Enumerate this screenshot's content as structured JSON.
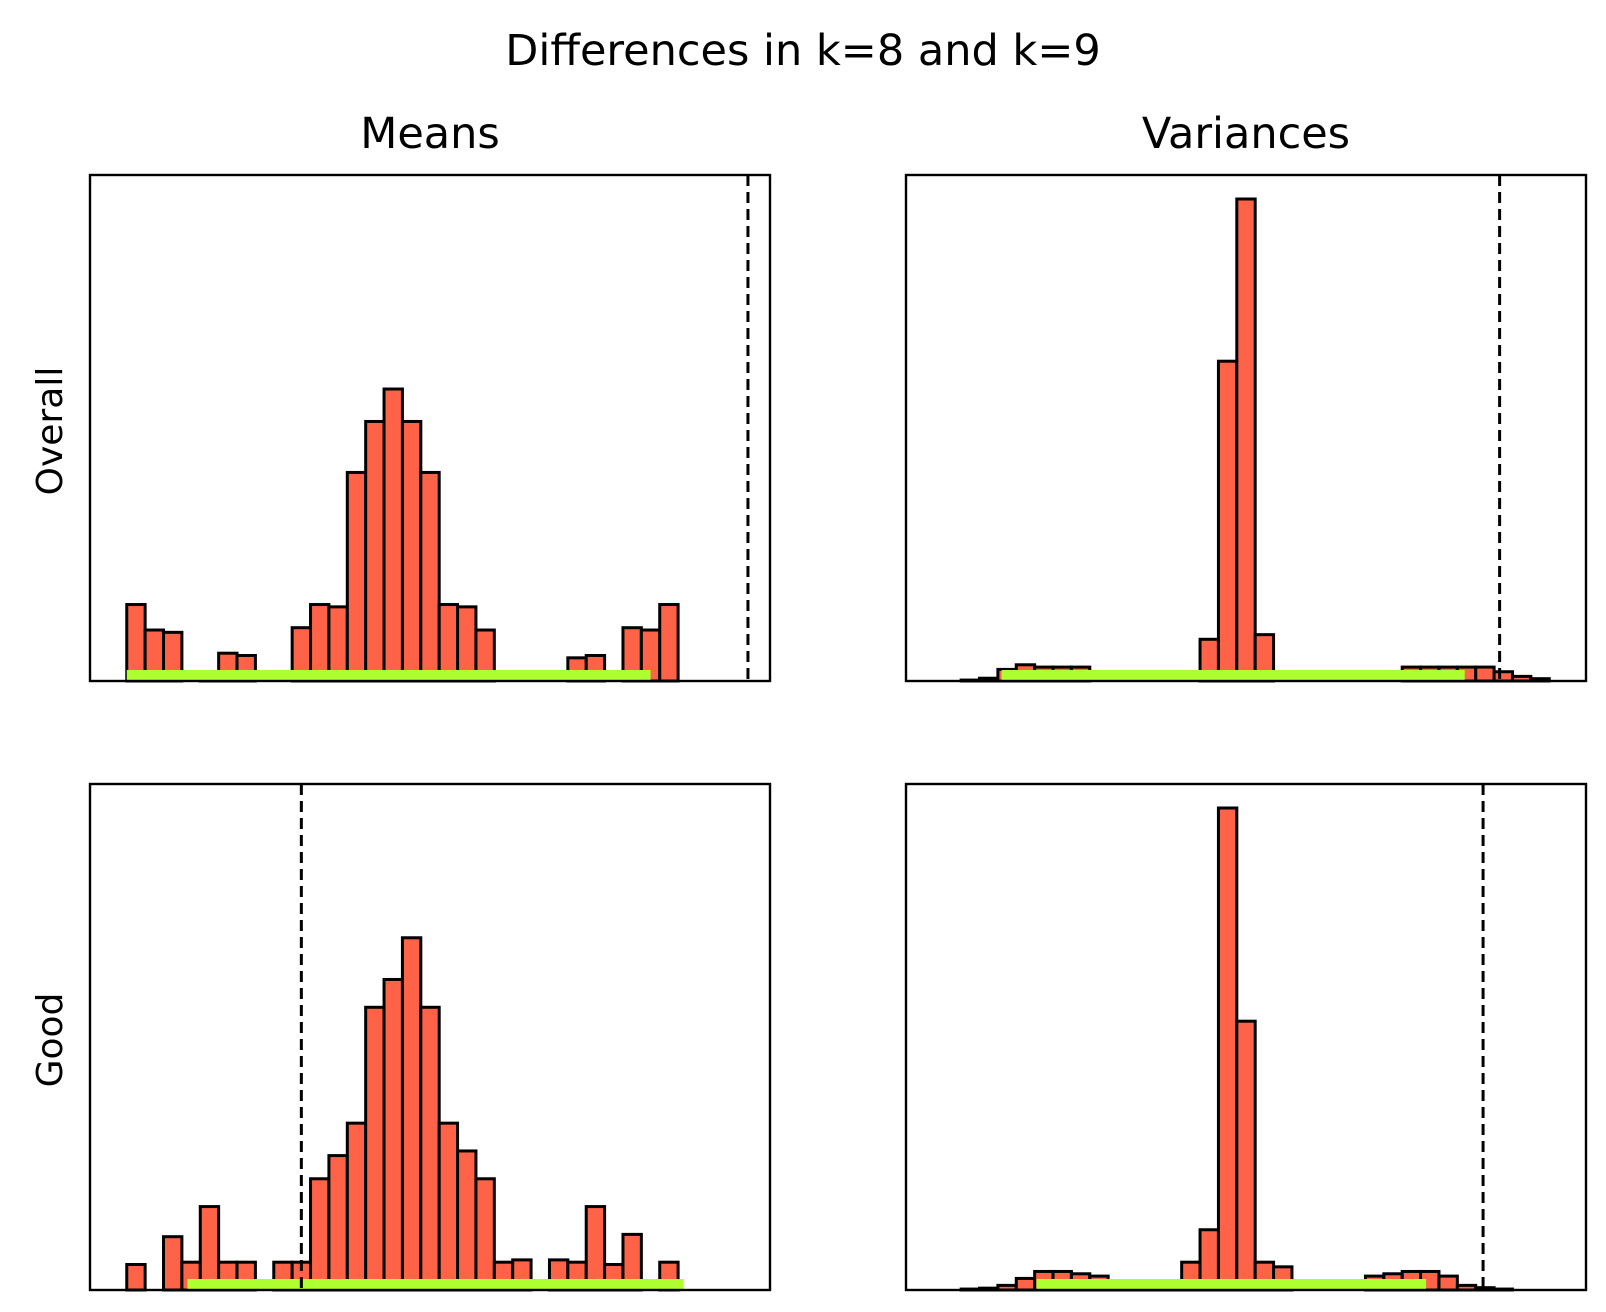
{
  "figure": {
    "suptitle": "Differences in k=8 and k=9",
    "col_titles": [
      "Means",
      "Variances"
    ],
    "row_labels": [
      "Overall",
      "Good"
    ]
  },
  "colors": {
    "bar_fill": "#ff6347",
    "bar_edge": "#000000",
    "interval": "#adff2f",
    "reference_line": "#000000"
  },
  "chart_data": [
    {
      "type": "bar",
      "panel": "Overall / Means",
      "xlim": [
        -2,
        35
      ],
      "ymax": 104,
      "x_ticks": "none",
      "y_ticks": "none",
      "bin_counts": [
        16.5,
        11,
        10.5,
        0,
        2,
        6,
        5.5,
        0,
        0,
        11.5,
        16.5,
        16,
        45,
        56,
        63,
        56,
        45,
        16.5,
        16,
        11,
        0,
        0,
        0,
        0,
        5,
        5.5,
        0,
        11.5,
        11,
        16.5,
        0,
        0,
        0,
        0,
        0
      ],
      "interval": [
        0,
        28.5
      ],
      "reference_x": 33.8
    },
    {
      "type": "bar",
      "panel": "Overall / Variances",
      "xlim": [
        -2,
        35
      ],
      "ymax": 104,
      "x_ticks": "none",
      "y_ticks": "none",
      "bin_counts": [
        0,
        0.2,
        0.6,
        2.5,
        3.5,
        3,
        3,
        3,
        0,
        0,
        0,
        0,
        0,
        0,
        9,
        69,
        104,
        10,
        0,
        0,
        0,
        0,
        0,
        0,
        0,
        3,
        3,
        3,
        3,
        3,
        2,
        1,
        0.5,
        0,
        0
      ],
      "interval": [
        3.2,
        28.4
      ],
      "reference_x": 30.3
    },
    {
      "type": "bar",
      "panel": "Good / Means",
      "xlim": [
        -2,
        35
      ],
      "ymax": 104,
      "x_ticks": "none",
      "y_ticks": "none",
      "bin_counts": [
        5.5,
        0,
        11.5,
        6,
        18,
        6,
        6,
        0,
        6,
        6,
        24,
        29,
        36,
        61,
        67,
        76,
        61,
        36,
        30,
        24,
        6,
        6.5,
        0,
        6.5,
        6,
        18,
        5.5,
        12,
        0,
        6,
        0,
        0,
        0,
        0,
        0
      ],
      "interval": [
        3.3,
        30.3
      ],
      "reference_x": 9.5
    },
    {
      "type": "bar",
      "panel": "Good / Variances",
      "xlim": [
        -2,
        35
      ],
      "ymax": 104,
      "x_ticks": "none",
      "y_ticks": "none",
      "bin_counts": [
        0,
        0.2,
        0.4,
        1,
        2.5,
        4,
        4,
        3.5,
        3,
        2,
        1,
        1,
        2,
        6,
        13,
        104,
        58,
        6,
        5,
        0,
        0,
        0,
        0,
        3,
        3.5,
        4,
        4,
        3,
        1,
        0.5,
        0.2,
        0,
        0,
        0,
        0
      ],
      "interval": [
        5.1,
        26.3
      ],
      "reference_x": 29.4
    }
  ]
}
